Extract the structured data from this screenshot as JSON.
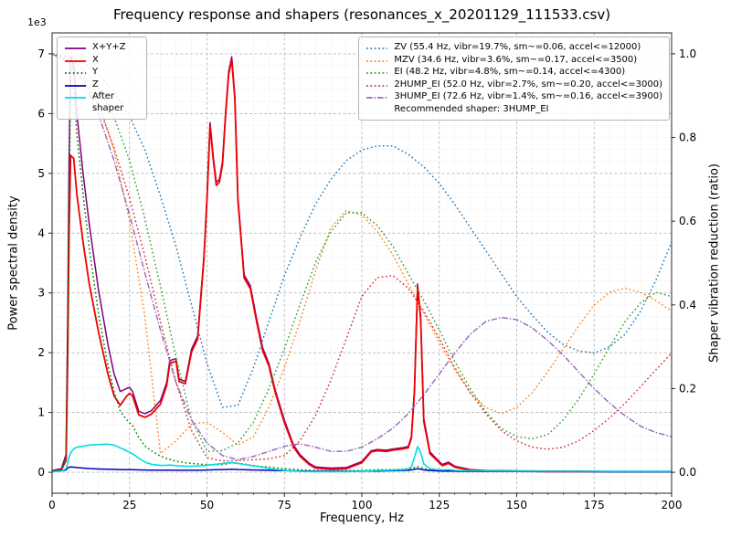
{
  "title": "Frequency response and shapers (resonances_x_20201129_111533.csv)",
  "axes": {
    "x": {
      "label": "Frequency, Hz",
      "ticks": [
        0,
        25,
        50,
        75,
        100,
        125,
        150,
        175,
        200
      ],
      "minor_step": 5
    },
    "y_left": {
      "label": "Power spectral density",
      "offset_label": "1e3",
      "ticks": [
        0,
        1,
        2,
        3,
        4,
        5,
        6,
        7
      ],
      "tick_scale": 1000,
      "minor_step": 200
    },
    "y_right": {
      "label": "Shaper vibration reduction (ratio)",
      "ticks": [
        "0.0",
        "0.2",
        "0.4",
        "0.6",
        "0.8",
        "1.0"
      ]
    }
  },
  "chart_data": {
    "type": "line",
    "title": "Frequency response and shapers (resonances_x_20201129_111533.csv)",
    "xlabel": "Frequency, Hz",
    "ylabel_left": "Power spectral density",
    "ylabel_right": "Shaper vibration reduction (ratio)",
    "xlim": [
      0,
      200
    ],
    "ylim_left": [
      0,
      7000
    ],
    "ylim_right": [
      0,
      1
    ],
    "grid": true,
    "legend_left_position": "upper-left",
    "legend_right_position": "upper-right",
    "recommended_note": "Recommended shaper: 3HUMP_EI",
    "psd_x": [
      0,
      3,
      4.5,
      5,
      5.5,
      6,
      7,
      8,
      10,
      12,
      15,
      18,
      20,
      22,
      24,
      25,
      26,
      28,
      30,
      32,
      35,
      37,
      38,
      40,
      41,
      43,
      45,
      47,
      49,
      50,
      51,
      52,
      53,
      54,
      55,
      56,
      57,
      58,
      59,
      60,
      62,
      64,
      66,
      68,
      70,
      72,
      75,
      78,
      80,
      83,
      85,
      90,
      95,
      100,
      103,
      105,
      108,
      110,
      113,
      115,
      116,
      117,
      118,
      119,
      120,
      122,
      124,
      126,
      128,
      130,
      135,
      140,
      150,
      160,
      170,
      180,
      190,
      200
    ],
    "psd_series": [
      {
        "name": "X+Y+Z",
        "label": "X+Y+Z",
        "color": "#800080",
        "style": "solid",
        "width": 1.5,
        "axis": "left",
        "values": [
          30,
          60,
          300,
          2500,
          5200,
          6950,
          6800,
          6000,
          5000,
          4150,
          3050,
          2150,
          1650,
          1350,
          1400,
          1420,
          1350,
          1020,
          980,
          1030,
          1200,
          1500,
          1870,
          1900,
          1560,
          1520,
          2060,
          2280,
          3600,
          4600,
          5850,
          5300,
          4850,
          4900,
          5200,
          6000,
          6700,
          6950,
          6300,
          4600,
          3300,
          3120,
          2580,
          2080,
          1820,
          1380,
          870,
          450,
          300,
          150,
          90,
          70,
          80,
          180,
          360,
          380,
          370,
          390,
          410,
          430,
          600,
          1400,
          3150,
          2600,
          900,
          340,
          230,
          130,
          170,
          100,
          45,
          30,
          25,
          20,
          18,
          15,
          15,
          15
        ]
      },
      {
        "name": "X",
        "label": "X",
        "color": "#ee0000",
        "style": "solid",
        "width": 1.8,
        "axis": "left",
        "values": [
          20,
          40,
          200,
          1800,
          4000,
          5300,
          5250,
          4650,
          3850,
          3150,
          2350,
          1650,
          1280,
          1120,
          1270,
          1320,
          1280,
          960,
          920,
          970,
          1140,
          1450,
          1820,
          1860,
          1520,
          1480,
          2010,
          2230,
          3550,
          4550,
          5800,
          5250,
          4800,
          4850,
          5150,
          5950,
          6650,
          6900,
          6250,
          4550,
          3250,
          3070,
          2530,
          2030,
          1780,
          1340,
          830,
          420,
          270,
          130,
          70,
          50,
          60,
          160,
          340,
          360,
          350,
          370,
          390,
          410,
          570,
          1350,
          3100,
          2550,
          850,
          310,
          210,
          110,
          150,
          85,
          35,
          25,
          18,
          12,
          12,
          10,
          10,
          10
        ]
      },
      {
        "name": "Y",
        "label": "Y",
        "color": "#008000",
        "style": "dotted",
        "width": 1.5,
        "axis": "left",
        "values": [
          20,
          40,
          250,
          2000,
          4500,
          6500,
          6400,
          5650,
          4650,
          3750,
          2650,
          1800,
          1350,
          1020,
          880,
          830,
          780,
          580,
          440,
          360,
          270,
          230,
          215,
          185,
          175,
          160,
          150,
          140,
          130,
          128,
          126,
          125,
          126,
          128,
          132,
          138,
          148,
          158,
          152,
          148,
          138,
          120,
          105,
          95,
          88,
          75,
          60,
          48,
          42,
          35,
          30,
          26,
          26,
          32,
          38,
          42,
          44,
          46,
          52,
          58,
          65,
          80,
          95,
          80,
          60,
          48,
          42,
          36,
          34,
          30,
          24,
          20,
          16,
          13,
          11,
          10,
          10,
          10
        ]
      },
      {
        "name": "Z",
        "label": "Z",
        "color": "#0000b8",
        "style": "solid",
        "width": 1.5,
        "axis": "left",
        "values": [
          15,
          25,
          40,
          70,
          85,
          90,
          85,
          80,
          70,
          62,
          55,
          50,
          48,
          45,
          44,
          43,
          42,
          40,
          38,
          37,
          36,
          35,
          35,
          34,
          34,
          33,
          33,
          34,
          36,
          38,
          40,
          41,
          42,
          43,
          45,
          46,
          48,
          50,
          48,
          46,
          42,
          40,
          38,
          35,
          33,
          30,
          27,
          24,
          22,
          20,
          18,
          16,
          16,
          18,
          20,
          22,
          24,
          26,
          30,
          34,
          40,
          50,
          60,
          52,
          40,
          30,
          25,
          22,
          20,
          18,
          15,
          13,
          12,
          10,
          10,
          8,
          8,
          8
        ]
      },
      {
        "name": "After shaper",
        "label": "After shaper",
        "color": "#00dce4",
        "style": "solid",
        "width": 1.6,
        "axis": "left",
        "values": [
          10,
          20,
          60,
          150,
          250,
          330,
          390,
          420,
          435,
          455,
          465,
          470,
          455,
          410,
          360,
          335,
          310,
          235,
          170,
          135,
          115,
          118,
          120,
          112,
          108,
          102,
          100,
          105,
          112,
          118,
          124,
          128,
          135,
          140,
          147,
          152,
          158,
          162,
          155,
          148,
          132,
          115,
          100,
          82,
          62,
          48,
          33,
          22,
          17,
          13,
          11,
          10,
          11,
          18,
          26,
          30,
          33,
          36,
          42,
          55,
          90,
          250,
          430,
          330,
          140,
          60,
          45,
          40,
          44,
          32,
          26,
          22,
          19,
          17,
          16,
          15,
          15,
          15
        ]
      }
    ],
    "shaper_x": [
      0,
      5,
      10,
      15,
      20,
      25,
      30,
      35,
      40,
      45,
      50,
      55,
      60,
      65,
      70,
      75,
      80,
      85,
      90,
      95,
      100,
      105,
      110,
      115,
      120,
      125,
      130,
      135,
      140,
      145,
      150,
      155,
      160,
      165,
      170,
      175,
      180,
      185,
      190,
      195,
      200
    ],
    "shaper_series": [
      {
        "name": "ZV",
        "label": "ZV (55.4 Hz, vibr=19.7%, sm~=0.06, accel<=12000)",
        "color": "#1f77b4",
        "style": "dotted",
        "width": 1.4,
        "axis": "right",
        "values": [
          1.0,
          0.995,
          0.98,
          0.95,
          0.91,
          0.85,
          0.77,
          0.66,
          0.54,
          0.4,
          0.26,
          0.155,
          0.16,
          0.25,
          0.36,
          0.47,
          0.56,
          0.64,
          0.7,
          0.745,
          0.77,
          0.78,
          0.78,
          0.76,
          0.73,
          0.69,
          0.64,
          0.585,
          0.53,
          0.475,
          0.42,
          0.375,
          0.335,
          0.305,
          0.29,
          0.285,
          0.3,
          0.33,
          0.385,
          0.46,
          0.55
        ]
      },
      {
        "name": "MZV",
        "label": "MZV (34.6 Hz, vibr=3.6%, sm~=0.17, accel<=3500)",
        "color": "#ff7f0e",
        "style": "dotted",
        "width": 1.4,
        "axis": "right",
        "values": [
          1.0,
          0.99,
          0.955,
          0.885,
          0.77,
          0.6,
          0.37,
          0.045,
          0.075,
          0.115,
          0.12,
          0.095,
          0.065,
          0.085,
          0.155,
          0.25,
          0.36,
          0.48,
          0.585,
          0.625,
          0.615,
          0.575,
          0.52,
          0.45,
          0.38,
          0.31,
          0.245,
          0.19,
          0.155,
          0.14,
          0.155,
          0.19,
          0.24,
          0.295,
          0.35,
          0.4,
          0.43,
          0.44,
          0.43,
          0.41,
          0.385
        ]
      },
      {
        "name": "EI",
        "label": "EI (48.2 Hz, vibr=4.8%, sm~=0.14, accel<=4300)",
        "color": "#2ca02c",
        "style": "dotted",
        "width": 1.4,
        "axis": "right",
        "values": [
          1.0,
          0.99,
          0.965,
          0.92,
          0.85,
          0.745,
          0.605,
          0.445,
          0.275,
          0.125,
          0.05,
          0.052,
          0.07,
          0.12,
          0.2,
          0.295,
          0.4,
          0.5,
          0.575,
          0.62,
          0.62,
          0.59,
          0.54,
          0.475,
          0.41,
          0.34,
          0.265,
          0.2,
          0.145,
          0.105,
          0.085,
          0.08,
          0.09,
          0.125,
          0.175,
          0.235,
          0.3,
          0.36,
          0.405,
          0.43,
          0.42
        ]
      },
      {
        "name": "2HUMP_EI",
        "label": "2HUMP_EI (52.0 Hz, vibr=2.7%, sm~=0.20, accel<=3000)",
        "color": "#d62728",
        "style": "dotted",
        "width": 1.4,
        "axis": "right",
        "values": [
          1.0,
          0.985,
          0.945,
          0.875,
          0.775,
          0.655,
          0.515,
          0.36,
          0.215,
          0.1,
          0.035,
          0.027,
          0.028,
          0.03,
          0.032,
          0.04,
          0.075,
          0.135,
          0.22,
          0.32,
          0.42,
          0.465,
          0.47,
          0.44,
          0.385,
          0.32,
          0.25,
          0.19,
          0.14,
          0.1,
          0.075,
          0.06,
          0.055,
          0.06,
          0.075,
          0.1,
          0.13,
          0.165,
          0.205,
          0.245,
          0.285
        ]
      },
      {
        "name": "3HUMP_EI",
        "label": "3HUMP_EI (72.6 Hz, vibr=1.4%, sm~=0.16, accel<=3900)",
        "color": "#9467bd",
        "style": "dashdot",
        "width": 1.4,
        "axis": "right",
        "values": [
          1.0,
          0.98,
          0.935,
          0.855,
          0.745,
          0.615,
          0.475,
          0.34,
          0.215,
          0.125,
          0.07,
          0.04,
          0.03,
          0.038,
          0.05,
          0.062,
          0.068,
          0.06,
          0.05,
          0.05,
          0.06,
          0.08,
          0.105,
          0.14,
          0.185,
          0.235,
          0.285,
          0.33,
          0.36,
          0.37,
          0.365,
          0.345,
          0.315,
          0.28,
          0.24,
          0.2,
          0.165,
          0.135,
          0.11,
          0.095,
          0.085
        ]
      }
    ]
  }
}
